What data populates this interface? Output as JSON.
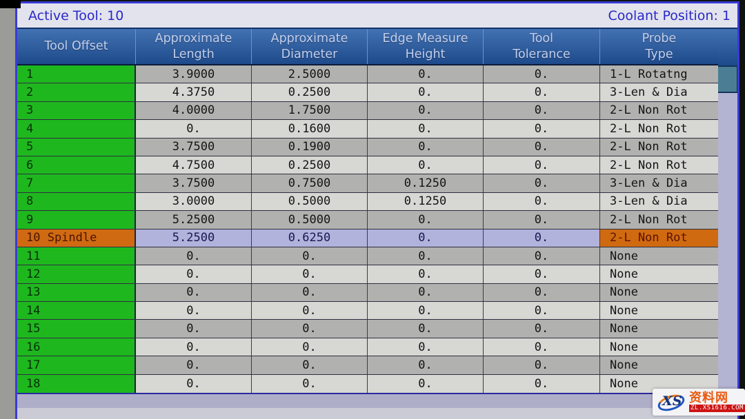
{
  "status_bar": {
    "active_tool": "Active Tool: 10",
    "coolant_position": "Coolant Position: 1"
  },
  "table": {
    "columns": [
      {
        "line1": "Tool Offset",
        "line2": ""
      },
      {
        "line1": "Approximate",
        "line2": "Length"
      },
      {
        "line1": "Approximate",
        "line2": "Diameter"
      },
      {
        "line1": "Edge Measure",
        "line2": "Height"
      },
      {
        "line1": "Tool",
        "line2": "Tolerance"
      },
      {
        "line1": "Probe",
        "line2": "Type"
      }
    ],
    "rows": [
      {
        "offset": "1",
        "length": "3.9000",
        "diameter": "2.5000",
        "edge": "0.",
        "tolerance": "0.",
        "probe": "1-L Rotatng",
        "selected": false
      },
      {
        "offset": "2",
        "length": "4.3750",
        "diameter": "0.2500",
        "edge": "0.",
        "tolerance": "0.",
        "probe": "3-Len & Dia",
        "selected": false
      },
      {
        "offset": "3",
        "length": "4.0000",
        "diameter": "1.7500",
        "edge": "0.",
        "tolerance": "0.",
        "probe": "2-L Non Rot",
        "selected": false
      },
      {
        "offset": "4",
        "length": "0.",
        "diameter": "0.1600",
        "edge": "0.",
        "tolerance": "0.",
        "probe": "2-L Non Rot",
        "selected": false
      },
      {
        "offset": "5",
        "length": "3.7500",
        "diameter": "0.1900",
        "edge": "0.",
        "tolerance": "0.",
        "probe": "2-L Non Rot",
        "selected": false
      },
      {
        "offset": "6",
        "length": "4.7500",
        "diameter": "0.2500",
        "edge": "0.",
        "tolerance": "0.",
        "probe": "2-L Non Rot",
        "selected": false
      },
      {
        "offset": "7",
        "length": "3.7500",
        "diameter": "0.7500",
        "edge": "0.1250",
        "tolerance": "0.",
        "probe": "3-Len & Dia",
        "selected": false
      },
      {
        "offset": "8",
        "length": "3.0000",
        "diameter": "0.5000",
        "edge": "0.1250",
        "tolerance": "0.",
        "probe": "3-Len & Dia",
        "selected": false
      },
      {
        "offset": "9",
        "length": "5.2500",
        "diameter": "0.5000",
        "edge": "0.",
        "tolerance": "0.",
        "probe": "2-L Non Rot",
        "selected": false
      },
      {
        "offset": "10 Spindle",
        "length": "5.2500",
        "diameter": "0.6250",
        "edge": "0.",
        "tolerance": "0.",
        "probe": "2-L Non Rot",
        "selected": true
      },
      {
        "offset": "11",
        "length": "0.",
        "diameter": "0.",
        "edge": "0.",
        "tolerance": "0.",
        "probe": "None",
        "selected": false
      },
      {
        "offset": "12",
        "length": "0.",
        "diameter": "0.",
        "edge": "0.",
        "tolerance": "0.",
        "probe": "None",
        "selected": false
      },
      {
        "offset": "13",
        "length": "0.",
        "diameter": "0.",
        "edge": "0.",
        "tolerance": "0.",
        "probe": "None",
        "selected": false
      },
      {
        "offset": "14",
        "length": "0.",
        "diameter": "0.",
        "edge": "0.",
        "tolerance": "0.",
        "probe": "None",
        "selected": false
      },
      {
        "offset": "15",
        "length": "0.",
        "diameter": "0.",
        "edge": "0.",
        "tolerance": "0.",
        "probe": "None",
        "selected": false
      },
      {
        "offset": "16",
        "length": "0.",
        "diameter": "0.",
        "edge": "0.",
        "tolerance": "0.",
        "probe": "None",
        "selected": false
      },
      {
        "offset": "17",
        "length": "0.",
        "diameter": "0.",
        "edge": "0.",
        "tolerance": "0.",
        "probe": "None",
        "selected": false
      },
      {
        "offset": "18",
        "length": "0.",
        "diameter": "0.",
        "edge": "0.",
        "tolerance": "0.",
        "probe": "None",
        "selected": false
      }
    ]
  },
  "watermark": {
    "logo_text": "XS",
    "site_name": "资料网",
    "site_url": "ZL.XS1616.COM"
  },
  "colors": {
    "header_blue": "#24549a",
    "offset_green": "#1eb81e",
    "selected_row_lavender": "#b1b3dd",
    "cursor_orange": "#cf6a12",
    "window_border_blue": "#3a3ad8"
  }
}
